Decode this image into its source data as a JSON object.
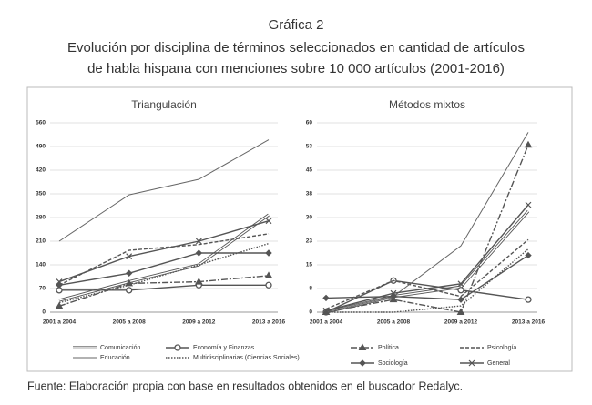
{
  "header": {
    "title": "Gráfica 2",
    "subtitle": [
      "Evolución por disciplina de términos seleccionados en cantidad de artículos",
      "de habla hispana con menciones sobre 10 000 artículos (2001-2016)"
    ]
  },
  "chart_data": [
    {
      "type": "line",
      "title": "Triangulación",
      "categories": [
        "2001 a 2004",
        "2005 a 2008",
        "2009 a 2012",
        "2013 a 2016"
      ],
      "ylim": [
        0,
        560
      ],
      "yticks": [
        0,
        70,
        140,
        210,
        280,
        350,
        420,
        490,
        560
      ],
      "grid": true,
      "series": [
        {
          "name": "Comunicación",
          "color": "#555555",
          "dash": "double",
          "marker": "none",
          "values": [
            35,
            90,
            140,
            288
          ]
        },
        {
          "name": "Economía y Finanzas",
          "color": "#555555",
          "dash": "solid",
          "marker": "circle",
          "values": [
            65,
            65,
            80,
            80
          ]
        },
        {
          "name": "Política",
          "color": "#555555",
          "dash": "dashdot",
          "marker": "triangle",
          "values": [
            18,
            85,
            90,
            108
          ]
        },
        {
          "name": "Psicología",
          "color": "#555555",
          "dash": "dashed",
          "marker": "none",
          "values": [
            80,
            183,
            200,
            232
          ]
        },
        {
          "name": "Educación",
          "color": "#666666",
          "dash": "solid",
          "marker": "none",
          "values": [
            210,
            347,
            393,
            510
          ]
        },
        {
          "name": "Multidisciplinarias (Ciencias Sociales)",
          "color": "#555555",
          "dash": "dotted",
          "marker": "none",
          "values": [
            28,
            80,
            140,
            203
          ]
        },
        {
          "name": "Sociología",
          "color": "#555555",
          "dash": "solid",
          "marker": "diamond",
          "values": [
            80,
            115,
            175,
            175
          ]
        },
        {
          "name": "General",
          "color": "#555555",
          "dash": "solid",
          "marker": "cross",
          "values": [
            90,
            165,
            210,
            270
          ]
        }
      ]
    },
    {
      "type": "line",
      "title": "Métodos mixtos",
      "categories": [
        "2001 a 2004",
        "2005 a 2008",
        "2009 a 2012",
        "2013 a 2016"
      ],
      "ylim": [
        0,
        60
      ],
      "yticks": [
        0,
        {
          "value": 7.5,
          "label": "8"
        },
        15,
        {
          "value": 22.5,
          "label": "23"
        },
        30,
        {
          "value": 37.5,
          "label": "38"
        },
        45,
        {
          "value": 52.5,
          "label": "53"
        },
        60
      ],
      "grid": true,
      "series": [
        {
          "color": "#555555",
          "dash": "double",
          "marker": "none",
          "values": [
            0,
            5,
            8,
            32
          ]
        },
        {
          "color": "#555555",
          "dash": "solid",
          "marker": "circle",
          "values": [
            0,
            10,
            7,
            4
          ]
        },
        {
          "color": "#555555",
          "dash": "dashdot",
          "marker": "triangle",
          "values": [
            0,
            4,
            0,
            53
          ]
        },
        {
          "color": "#555555",
          "dash": "dashed",
          "marker": "none",
          "values": [
            1,
            10,
            5,
            23
          ]
        },
        {
          "color": "#666666",
          "dash": "solid",
          "marker": "none",
          "values": [
            0,
            5,
            21,
            57
          ]
        },
        {
          "color": "#555555",
          "dash": "dotted",
          "marker": "none",
          "values": [
            0,
            0,
            2,
            20
          ]
        },
        {
          "color": "#555555",
          "dash": "solid",
          "marker": "diamond",
          "values": [
            4.5,
            5,
            4,
            18
          ]
        },
        {
          "color": "#555555",
          "dash": "solid",
          "marker": "cross",
          "values": [
            0.5,
            6,
            9,
            34
          ]
        }
      ]
    }
  ],
  "footer": {
    "source": "Fuente: Elaboración propia con base en resultados obtenidos en el buscador Redalyc."
  }
}
